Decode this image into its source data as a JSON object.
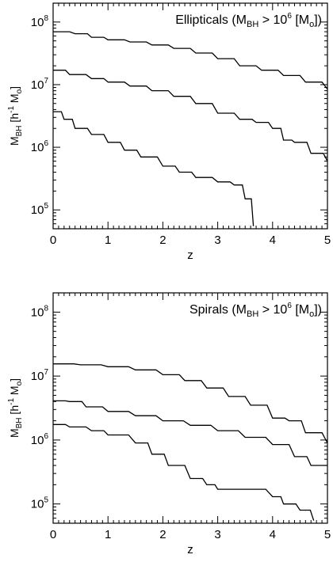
{
  "chart_data": [
    {
      "type": "line",
      "annotation": {
        "prefix": "Ellipticals (M",
        "sub": "BH",
        "mid": " > 10",
        "sup": "6",
        "mid2": " [M",
        "sub2": "o",
        "suffix": "])"
      },
      "xlabel": "z",
      "ylabel": {
        "main": "M",
        "sub": "BH",
        "rest": " [h",
        "sup": "-1",
        "rest2": " M",
        "sub2": "o",
        "end": "]"
      },
      "xlim": [
        0,
        5
      ],
      "ylim": [
        50000,
        200000000
      ],
      "yscale": "log",
      "xticks": [
        "0",
        "1",
        "2",
        "3",
        "4",
        "5"
      ],
      "yticks": [
        {
          "base": "10",
          "exp": "5",
          "value": 100000
        },
        {
          "base": "10",
          "exp": "6",
          "value": 1000000
        },
        {
          "base": "10",
          "exp": "7",
          "value": 10000000
        },
        {
          "base": "10",
          "exp": "8",
          "value": 100000000
        }
      ],
      "series": [
        {
          "x": [
            0,
            0.4,
            0.7,
            1.0,
            1.4,
            1.8,
            2.2,
            2.6,
            3.0,
            3.4,
            3.8,
            4.2,
            4.6,
            5.0
          ],
          "y": [
            70000000,
            65000000,
            57000000,
            52000000,
            48000000,
            43000000,
            38000000,
            32000000,
            26000000,
            20000000,
            17000000,
            14000000,
            11000000,
            8500000
          ]
        },
        {
          "x": [
            0,
            0.3,
            0.7,
            1.0,
            1.4,
            1.8,
            2.2,
            2.6,
            3.0,
            3.4,
            3.7,
            4.0,
            4.2,
            4.4,
            4.7,
            5.0
          ],
          "y": [
            17000000,
            14500000,
            12500000,
            11000000,
            9500000,
            8000000,
            6500000,
            5000000,
            3500000,
            2800000,
            2500000,
            2000000,
            1300000,
            1200000,
            800000,
            600000
          ]
        },
        {
          "x": [
            0,
            0.2,
            0.4,
            0.7,
            1.0,
            1.3,
            1.6,
            2.0,
            2.3,
            2.6,
            3.0,
            3.3,
            3.5,
            3.65
          ],
          "y": [
            3700000,
            2800000,
            2000000,
            1600000,
            1200000,
            900000,
            700000,
            500000,
            400000,
            330000,
            280000,
            250000,
            150000,
            55000
          ]
        }
      ]
    },
    {
      "type": "line",
      "annotation": {
        "prefix": "Spirals (M",
        "sub": "BH",
        "mid": " > 10",
        "sup": "6",
        "mid2": " [M",
        "sub2": "o",
        "suffix": "])"
      },
      "xlabel": "z",
      "ylabel": {
        "main": "M",
        "sub": "BH",
        "rest": " [h",
        "sup": "-1",
        "rest2": " M",
        "sub2": "o",
        "end": "]"
      },
      "xlim": [
        0,
        5
      ],
      "ylim": [
        50000,
        200000000
      ],
      "yscale": "log",
      "xticks": [
        "0",
        "1",
        "2",
        "3",
        "4",
        "5"
      ],
      "yticks": [
        {
          "base": "10",
          "exp": "5",
          "value": 100000
        },
        {
          "base": "10",
          "exp": "6",
          "value": 1000000
        },
        {
          "base": "10",
          "exp": "7",
          "value": 10000000
        },
        {
          "base": "10",
          "exp": "8",
          "value": 100000000
        }
      ],
      "series": [
        {
          "x": [
            0,
            0.5,
            1.0,
            1.5,
            2.0,
            2.4,
            2.8,
            3.2,
            3.6,
            4.0,
            4.3,
            4.6,
            5.0
          ],
          "y": [
            15500000,
            15000000,
            14000000,
            12500000,
            10500000,
            8500000,
            6500000,
            4800000,
            3500000,
            2200000,
            2000000,
            1300000,
            900000
          ]
        },
        {
          "x": [
            0,
            0.3,
            0.6,
            1.0,
            1.5,
            2.0,
            2.5,
            3.0,
            3.5,
            4.0,
            4.4,
            4.7,
            5.0
          ],
          "y": [
            4100000,
            4000000,
            3300000,
            2800000,
            2400000,
            2000000,
            1700000,
            1400000,
            1100000,
            850000,
            550000,
            400000,
            400000
          ]
        },
        {
          "x": [
            0,
            0.3,
            0.7,
            1.0,
            1.5,
            1.8,
            2.1,
            2.5,
            2.8,
            3.0,
            3.5,
            4.0,
            4.2,
            4.5,
            4.75
          ],
          "y": [
            1750000,
            1600000,
            1400000,
            1200000,
            900000,
            600000,
            400000,
            250000,
            200000,
            170000,
            170000,
            130000,
            100000,
            80000,
            55000
          ]
        }
      ]
    }
  ]
}
